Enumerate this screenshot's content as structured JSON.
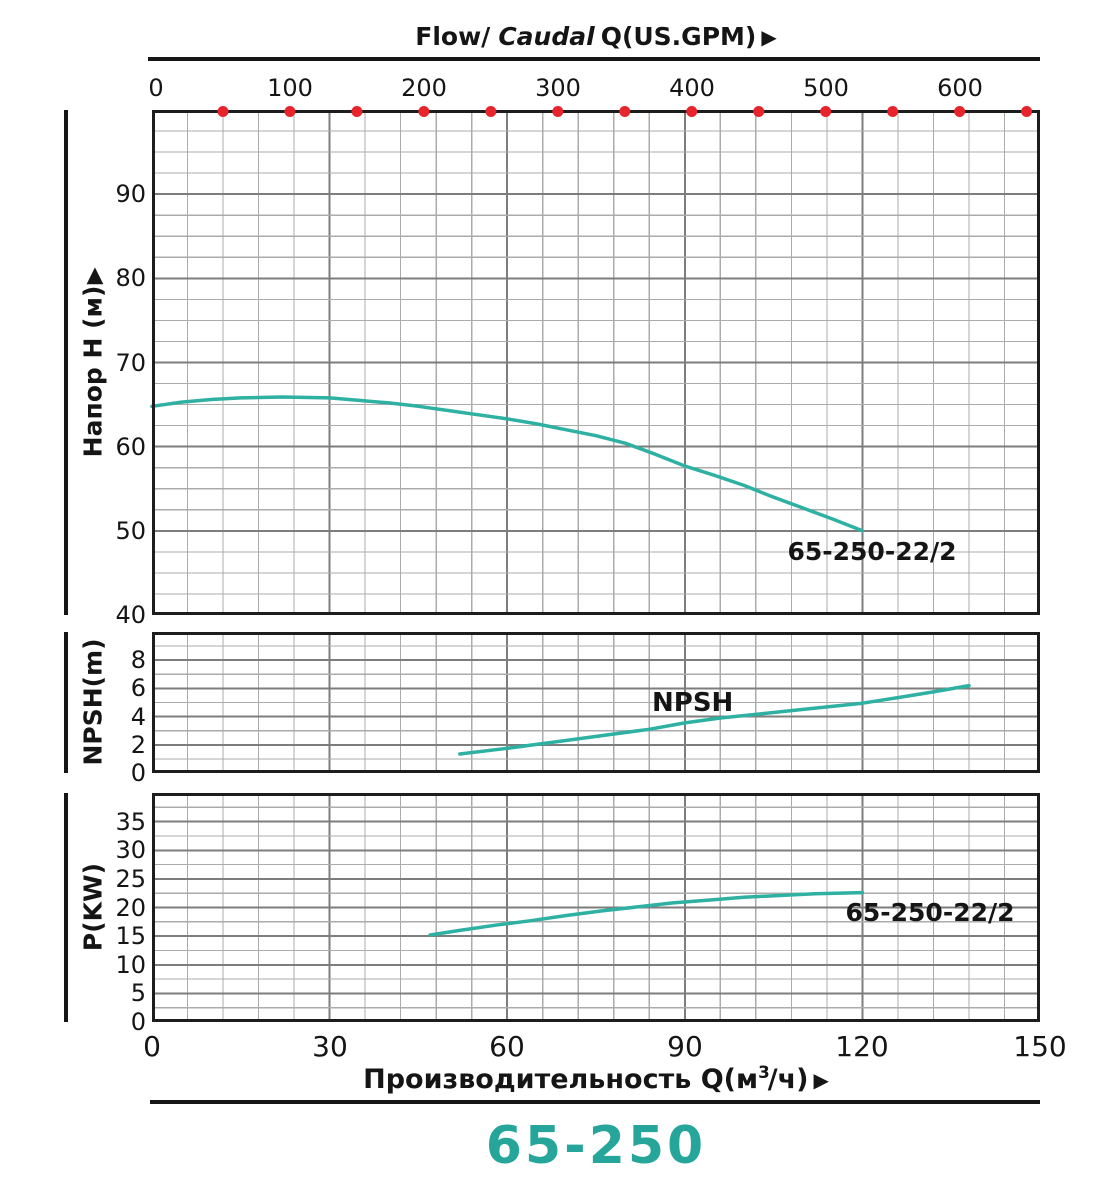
{
  "colors": {
    "curve_teal": "#2eb1a2",
    "model_teal": "#26a69a",
    "dot_red": "#e7242b",
    "grid_minor": "#ababab",
    "grid_major": "#7d7d7d",
    "frame": "#1d1d1d",
    "text": "#151515"
  },
  "top_axis": {
    "title_flow": "Flow/",
    "title_caudal": "Caudal",
    "title_unit": "Q(US.GPM)",
    "arrow": "▶",
    "range_gpm": [
      0,
      660
    ],
    "tick_values_gpm": [
      0,
      100,
      200,
      300,
      400,
      500,
      600
    ],
    "tick_labels": [
      "0",
      "100",
      "200",
      "300",
      "400",
      "500",
      "600"
    ],
    "dot_positions_gpm": [
      50,
      100,
      150,
      200,
      250,
      300,
      350,
      400,
      450,
      500,
      550,
      600,
      650
    ]
  },
  "bottom_axis": {
    "title_prefix": "Производительность Q(м",
    "title_sup": "3",
    "title_suffix": "/ч)",
    "arrow": "▶",
    "range": [
      0,
      150
    ],
    "tick_values": [
      0,
      30,
      60,
      90,
      120,
      150
    ],
    "tick_labels": [
      "0",
      "30",
      "60",
      "90",
      "120",
      "150"
    ]
  },
  "footer": {
    "model": "65-250"
  },
  "chart_data": [
    {
      "type": "line",
      "name": "head-curve",
      "ylabel": "Напор H (м)",
      "ylabel_arrow": "▲",
      "ylim": [
        40,
        100
      ],
      "yticks": [
        90,
        80,
        70,
        60,
        50,
        40
      ],
      "ytick_labels": [
        "90",
        "80",
        "70",
        "60",
        "50",
        "40"
      ],
      "y_minor_step": 2.5,
      "y_major_step": 10,
      "xlim": [
        0,
        150
      ],
      "x_minor_step": 6,
      "x_major_step": 30,
      "grid": true,
      "series": [
        {
          "name": "65-250-22/2",
          "curve_label": "65-250-22/2",
          "points": [
            [
              0,
              64.8
            ],
            [
              5,
              65.3
            ],
            [
              10,
              65.6
            ],
            [
              15,
              65.8
            ],
            [
              22,
              65.9
            ],
            [
              30,
              65.8
            ],
            [
              35,
              65.5
            ],
            [
              40,
              65.2
            ],
            [
              45,
              64.8
            ],
            [
              50,
              64.3
            ],
            [
              55,
              63.8
            ],
            [
              60,
              63.3
            ],
            [
              65,
              62.7
            ],
            [
              70,
              62.0
            ],
            [
              75,
              61.3
            ],
            [
              80,
              60.4
            ],
            [
              85,
              59.1
            ],
            [
              90,
              57.7
            ],
            [
              95,
              56.6
            ],
            [
              100,
              55.4
            ],
            [
              105,
              54.0
            ],
            [
              110,
              52.7
            ],
            [
              115,
              51.4
            ],
            [
              120,
              50.0
            ]
          ]
        }
      ]
    },
    {
      "type": "line",
      "name": "npsh-curve",
      "ylabel": "NPSH(m)",
      "ylim": [
        0,
        10
      ],
      "yticks": [
        8,
        6,
        4,
        2,
        0
      ],
      "ytick_labels": [
        "8",
        "6",
        "4",
        "2",
        "0"
      ],
      "y_minor_step": 1,
      "y_major_step": 2,
      "xlim": [
        0,
        150
      ],
      "x_minor_step": 6,
      "x_major_step": 30,
      "grid": true,
      "series": [
        {
          "name": "NPSH",
          "curve_label": "NPSH",
          "points": [
            [
              52,
              1.35
            ],
            [
              60,
              1.75
            ],
            [
              68,
              2.2
            ],
            [
              76,
              2.65
            ],
            [
              84,
              3.1
            ],
            [
              90,
              3.55
            ],
            [
              96,
              3.9
            ],
            [
              104,
              4.25
            ],
            [
              112,
              4.6
            ],
            [
              120,
              4.95
            ],
            [
              126,
              5.35
            ],
            [
              132,
              5.75
            ],
            [
              138,
              6.2
            ]
          ]
        }
      ]
    },
    {
      "type": "line",
      "name": "power-curve",
      "ylabel": "P(KW)",
      "ylim": [
        0,
        40
      ],
      "yticks": [
        35,
        30,
        25,
        20,
        15,
        10,
        5,
        0
      ],
      "ytick_labels": [
        "35",
        "30",
        "25",
        "20",
        "15",
        "10",
        "5",
        "0"
      ],
      "y_minor_step": 2.5,
      "y_major_step": 5,
      "xlim": [
        0,
        150
      ],
      "x_minor_step": 6,
      "x_major_step": 30,
      "grid": true,
      "series": [
        {
          "name": "65-250-22/2",
          "curve_label": "65-250-22/2",
          "points": [
            [
              47,
              15.2
            ],
            [
              52,
              16.0
            ],
            [
              58,
              16.9
            ],
            [
              64,
              17.7
            ],
            [
              70,
              18.6
            ],
            [
              76,
              19.4
            ],
            [
              82,
              20.1
            ],
            [
              88,
              20.8
            ],
            [
              94,
              21.3
            ],
            [
              100,
              21.8
            ],
            [
              106,
              22.1
            ],
            [
              112,
              22.4
            ],
            [
              120,
              22.6
            ]
          ]
        }
      ]
    }
  ]
}
